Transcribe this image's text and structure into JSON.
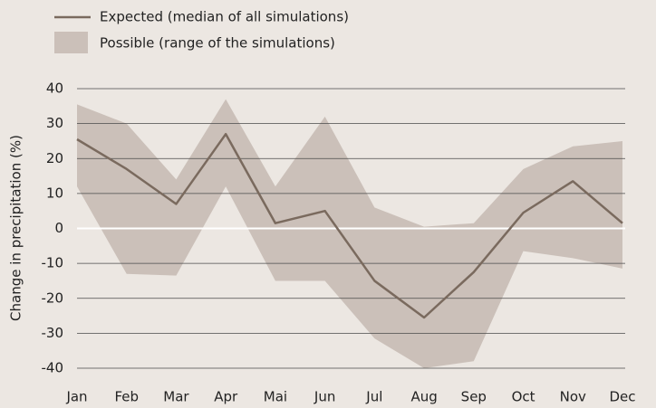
{
  "chart_data": {
    "type": "line",
    "y_label": "Change in precipitation (%)",
    "categories": [
      "Jan",
      "Feb",
      "Mar",
      "Apr",
      "Mai",
      "Jun",
      "Jul",
      "Aug",
      "Sep",
      "Oct",
      "Nov",
      "Dec"
    ],
    "series": [
      {
        "name": "Expected (median of all simulations)",
        "color": "#7a6a5e",
        "values": [
          25.5,
          17,
          7,
          27,
          1.5,
          5,
          -15,
          -25.5,
          -12.5,
          4.5,
          13.5,
          1.5
        ]
      },
      {
        "name": "Possible (range of the simulations)",
        "color": "#cbc0b9",
        "upper": [
          35.5,
          30,
          14,
          37,
          12,
          32,
          6,
          0.5,
          1.5,
          17,
          23.5,
          25
        ],
        "lower": [
          12,
          -13,
          -13.5,
          12,
          -15,
          -15,
          -31.5,
          -40,
          -38,
          -6.5,
          -8.5,
          -11.5
        ]
      }
    ],
    "ylim": [
      -40,
      40
    ],
    "yticks": [
      -40,
      -30,
      -20,
      -10,
      0,
      10,
      20,
      30,
      40
    ],
    "grid": true
  }
}
